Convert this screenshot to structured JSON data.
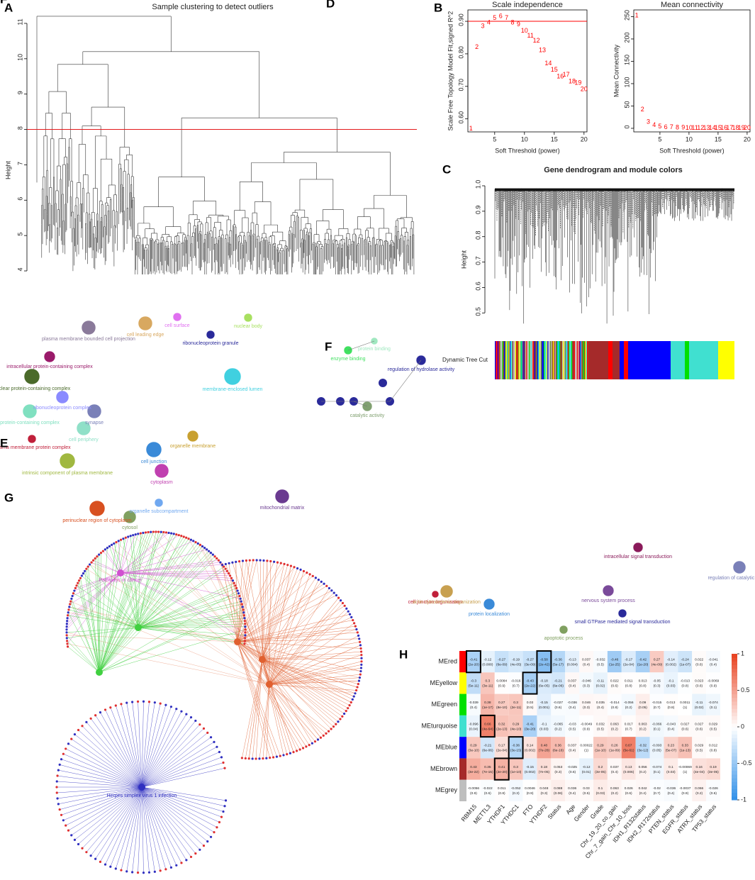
{
  "chart_data": [
    {
      "type": "dendrogram",
      "panel": "A",
      "title": "Sample clustering to detect outliers",
      "ylabel": "Height",
      "ylim": [
        3.8,
        11.3
      ],
      "yticks": [
        4,
        5,
        6,
        7,
        8,
        9,
        10,
        11
      ],
      "hline": 8,
      "hline_color": "#e41a1c"
    },
    {
      "type": "text-scatter",
      "panel": "B",
      "title": "Scale independence",
      "xlabel": "Soft Threshold (power)",
      "ylabel": "Scale Free Topology Model Fit,signed R^2",
      "x": [
        1,
        2,
        3,
        4,
        5,
        6,
        7,
        8,
        9,
        10,
        11,
        12,
        13,
        14,
        15,
        16,
        17,
        18,
        19,
        20
      ],
      "values": [
        0.57,
        0.82,
        0.885,
        0.895,
        0.91,
        0.915,
        0.91,
        0.895,
        0.89,
        0.87,
        0.855,
        0.84,
        0.81,
        0.77,
        0.75,
        0.73,
        0.735,
        0.715,
        0.71,
        0.69
      ],
      "color": "#ff0000",
      "xlim": [
        0.5,
        20.5
      ],
      "xticks": [
        5,
        10,
        15,
        20
      ],
      "ylim": [
        0.56,
        0.935
      ],
      "yticks": [
        {
          "value": 0.6,
          "label": "0.60"
        },
        {
          "value": 0.7,
          "label": "0.70"
        },
        {
          "value": 0.8,
          "label": "0.80"
        },
        {
          "value": 0.9,
          "label": "0.90"
        }
      ],
      "hline": 0.9,
      "hline_color": "#ff0000"
    },
    {
      "type": "text-scatter",
      "title": "Mean connectivity",
      "xlabel": "Soft Threshold (power)",
      "ylabel": "Mean Connectivity",
      "x": [
        1,
        2,
        3,
        4,
        5,
        6,
        7,
        8,
        9,
        10,
        11,
        12,
        13,
        14,
        15,
        16,
        17,
        18,
        19,
        20
      ],
      "values": [
        252,
        42,
        14,
        7,
        4,
        2.5,
        1.8,
        1.4,
        1.1,
        0.9,
        0.8,
        0.7,
        0.6,
        0.55,
        0.5,
        0.45,
        0.4,
        0.38,
        0.35,
        0.33
      ],
      "color": "#ff0000",
      "xlim": [
        0.5,
        20.5
      ],
      "xticks": [
        5,
        10,
        15,
        20
      ],
      "ylim": [
        -8,
        265
      ],
      "yticks": [
        0,
        50,
        100,
        150,
        200,
        250
      ]
    },
    {
      "type": "gene-dendrogram",
      "panel": "C",
      "title": "Gene dendrogram and module colors",
      "ylabel": "Height",
      "colorbar_label": "Dynamic Tree Cut",
      "ylim": [
        0.42,
        1.0
      ],
      "yticks": [
        0.5,
        0.6,
        0.7,
        0.8,
        0.9,
        {
          "value": 1.0,
          "label": "1.0"
        }
      ]
    },
    {
      "type": "heatmap",
      "panel": "H",
      "rows": [
        "MEred",
        "MEyellow",
        "MEgreen",
        "MEturquoise",
        "MEblue",
        "MEbrown",
        "MEgrey"
      ],
      "row_colors": [
        "#ff0000",
        "#ffff00",
        "#00e000",
        "#40e0d0",
        "#0000ff",
        "#a52a2a",
        "#bebebe"
      ],
      "columns": [
        "RBM15",
        "METTL3",
        "YTHDF1",
        "YTHDC1",
        "FTO",
        "YTHDF2",
        "Status",
        "Age",
        "Gender",
        "Grade",
        "Chr_19_20_co_gain",
        "Chr_7_gain_Chr_10_loss",
        "IDH1_R132status",
        "IDH2_R172status",
        "PTEN_status",
        "EGFR_status",
        "ATRX_status",
        "TP53_status"
      ],
      "values": [
        [
          -0.41,
          -0.12,
          -0.27,
          -0.19,
          -0.27,
          -0.58,
          -0.36,
          -0.13,
          0.037,
          -0.032,
          -0.46,
          -0.17,
          -0.42,
          0.27,
          -0.14,
          -0.24,
          0.022,
          -0.041
        ],
        [
          -0.3,
          0.3,
          0.0084,
          -0.016,
          -0.43,
          -0.18,
          -0.21,
          0.037,
          -0.046,
          -0.11,
          0.022,
          0.011,
          0.013,
          -0.05,
          -0.1,
          -0.013,
          0.023,
          -0.0069
        ],
        [
          -0.039,
          0.38,
          0.27,
          0.3,
          0.03,
          -0.15,
          -0.027,
          -0.036,
          0.046,
          0.035,
          -0.014,
          -0.056,
          0.09,
          -0.015,
          0.013,
          0.0011,
          -0.11,
          -0.074
        ],
        [
          -0.096,
          0.66,
          0.32,
          0.29,
          -0.41,
          -0.1,
          -0.065,
          -0.03,
          -0.0049,
          0.032,
          0.063,
          0.017,
          0.063,
          -0.066,
          -0.043,
          0.027,
          0.027,
          0.029
        ],
        [
          0.29,
          -0.21,
          0.17,
          -0.36,
          0.14,
          0.48,
          0.36,
          0.037,
          0.00022,
          0.29,
          0.26,
          0.67,
          -0.32,
          -0.093,
          0.23,
          0.33,
          0.029,
          0.012
        ],
        [
          0.43,
          0.35,
          0.41,
          0.3,
          -0.15,
          0.18,
          0.053,
          -0.025,
          -0.12,
          0.2,
          0.037,
          0.13,
          0.056,
          -0.074,
          0.1,
          -0.00069,
          0.16,
          0.19
        ],
        [
          -0.0056,
          -0.022,
          0.011,
          -0.052,
          0.0046,
          0.048,
          0.088,
          0.036,
          0.03,
          0.1,
          0.063,
          0.026,
          0.042,
          -0.02,
          -0.036,
          -0.0037,
          0.066,
          -0.026
        ]
      ],
      "pvalues": [
        [
          "(2e-20)",
          "(0.008)",
          "(6e-09)",
          "(4e-05)",
          "(3e-09)",
          "(2e-42)",
          "(5e-17)",
          "(0.004)",
          "(0.4)",
          "(0.5)",
          "(1e-25)",
          "(2e-04)",
          "(1e-20)",
          "(4e-09)",
          "(0.002)",
          "(1e-07)",
          "(0.6)",
          "(0.4)"
        ],
        [
          "(5e-11)",
          "(3e-11)",
          "(0.9)",
          "(0.7)",
          "(2e-22)",
          "(6e-05)",
          "(6e-06)",
          "(0.4)",
          "(0.3)",
          "(0.02)",
          "(0.6)",
          "(0.8)",
          "(0.8)",
          "(0.3)",
          "(0.03)",
          "(0.8)",
          "(0.6)",
          "(0.9)"
        ],
        [
          "(0.4)",
          "(1e-17)",
          "(8e-10)",
          "(2e-11)",
          "(0.5)",
          "(0.001)",
          "(0.6)",
          "(0.4)",
          "(0.3)",
          "(0.4)",
          "(0.8)",
          "(0.2)",
          "(0.05)",
          "(0.7)",
          "(0.8)",
          "(1)",
          "(0.02)",
          "(0.1)"
        ],
        [
          "(0.04)",
          "(4e-64)",
          "(2e-13)",
          "(4e-10)",
          "(3e-20)",
          "(0.03)",
          "(0.2)",
          "(0.5)",
          "(0.9)",
          "(0.5)",
          "(0.2)",
          "(0.7)",
          "(0.2)",
          "(0.1)",
          "(0.4)",
          "(0.6)",
          "(0.6)",
          "(0.5)"
        ],
        [
          "(3e-10)",
          "(6e-06)",
          "(2e-04)",
          "(3e-15)",
          "(0.002)",
          "(7e-28)",
          "(6e-16)",
          "(0.4)",
          "(1)",
          "(1e-10)",
          "(1e-09)",
          "(5e-61)",
          "(3e-12)",
          "(0.05)",
          "(5e-07)",
          "(1e-13)",
          "(0.5)",
          "(0.8)"
        ],
        [
          "(3e-22)",
          "(7e-15)",
          "(2e-20)",
          "(1e-10)",
          "(0.002)",
          "(7e-05)",
          "(0.3)",
          "(0.6)",
          "(0.01)",
          "(3e-05)",
          "(0.4)",
          "(0.006)",
          "(0.2)",
          "(0.1)",
          "(0.03)",
          "(1)",
          "(4e-04)",
          "(3e-05)"
        ],
        [
          "(0.9)",
          "(0.6)",
          "(0.8)",
          "(0.3)",
          "(0.9)",
          "(0.3)",
          "(0.06)",
          "(0.4)",
          "(0.5)",
          "(0.03)",
          "(0.2)",
          "(0.6)",
          "(0.4)",
          "(0.7)",
          "(0.4)",
          "(0.9)",
          "(0.2)",
          "(0.6)"
        ]
      ],
      "highlight": [
        [
          0,
          0
        ],
        [
          0,
          5
        ],
        [
          1,
          4
        ],
        [
          3,
          1
        ],
        [
          4,
          3
        ],
        [
          5,
          2
        ]
      ],
      "low_color": "#2f8fe8",
      "mid_color": "#ffffff",
      "high_color": "#e8401e",
      "zlim": [
        -1,
        1
      ],
      "zticks": [
        -1,
        -0.5,
        0,
        0.5,
        1
      ]
    }
  ],
  "networks": [
    {
      "panel": "D",
      "nodes": [
        {
          "label": "cell surface",
          "color": "#e070f0"
        },
        {
          "label": "plasma membrane bounded cell projection",
          "color": "#8a7a9a"
        },
        {
          "label": "cell leading edge",
          "color": "#d8a860"
        },
        {
          "label": "ribonucleoprotein granule",
          "color": "#2a2a9a"
        },
        {
          "label": "nuclear body",
          "color": "#a8e060"
        },
        {
          "label": "intracellular protein-containing complex",
          "color": "#9a1a6a"
        },
        {
          "label": "nuclear protein-containing complex",
          "color": "#4a6a2a"
        },
        {
          "label": "ribonucleoprotein complex",
          "color": "#8a8aff"
        },
        {
          "label": "protein-containing complex",
          "color": "#80e0c0"
        },
        {
          "label": "cell periphery",
          "color": "#90e0c8"
        },
        {
          "label": "plasma membrane protein complex",
          "color": "#c0203a"
        },
        {
          "label": "intrinsic component of plasma membrane",
          "color": "#a0b840"
        },
        {
          "label": "synapse",
          "color": "#7a80b8"
        },
        {
          "label": "cell junction",
          "color": "#3a8ad8"
        },
        {
          "label": "organelle membrane",
          "color": "#c8a030"
        },
        {
          "label": "cytoplasm",
          "color": "#c040b0"
        },
        {
          "label": "mitochondrial matrix",
          "color": "#6a3a90"
        },
        {
          "label": "membrane-enclosed lumen",
          "color": "#40d0e0"
        },
        {
          "label": "perinuclear region of cytoplasm",
          "color": "#d85020"
        },
        {
          "label": "cytosol",
          "color": "#80a060"
        },
        {
          "label": "organelle subcompartment",
          "color": "#70a8f0"
        }
      ]
    },
    {
      "panel": "F",
      "nodes": [
        {
          "label": "protein binding",
          "color": "#a0e8c0"
        },
        {
          "label": "enzyme binding",
          "color": "#40e060"
        },
        {
          "label": "regulation of hydrolase activity",
          "color": "#2a2a9a"
        },
        {
          "label": "catalytic activity",
          "color": "#80a070"
        }
      ]
    },
    {
      "panel": "E",
      "nodes": [
        {
          "label": "regulation of catalytic activity",
          "color": "#7a80b8"
        },
        {
          "label": "intracellular signal transduction",
          "color": "#8a1a5a"
        },
        {
          "label": "small GTPase mediated signal transduction",
          "color": "#2a2a9a"
        },
        {
          "label": "cell junction organization",
          "color": "#c0203a"
        },
        {
          "label": "actin cytoskeleton organization",
          "color": "#c8a050"
        },
        {
          "label": "protein localization",
          "color": "#3a8ad8"
        },
        {
          "label": "nervous system process",
          "color": "#7a4a9a"
        },
        {
          "label": "apoptotic process",
          "color": "#80a060"
        }
      ]
    },
    {
      "panel": "G",
      "nodes": [
        {
          "label": "Pathways in cancer",
          "color": "#d050d0"
        },
        {
          "label": "Herpes simplex virus 1 infection",
          "color": "#3030c0"
        }
      ]
    }
  ]
}
